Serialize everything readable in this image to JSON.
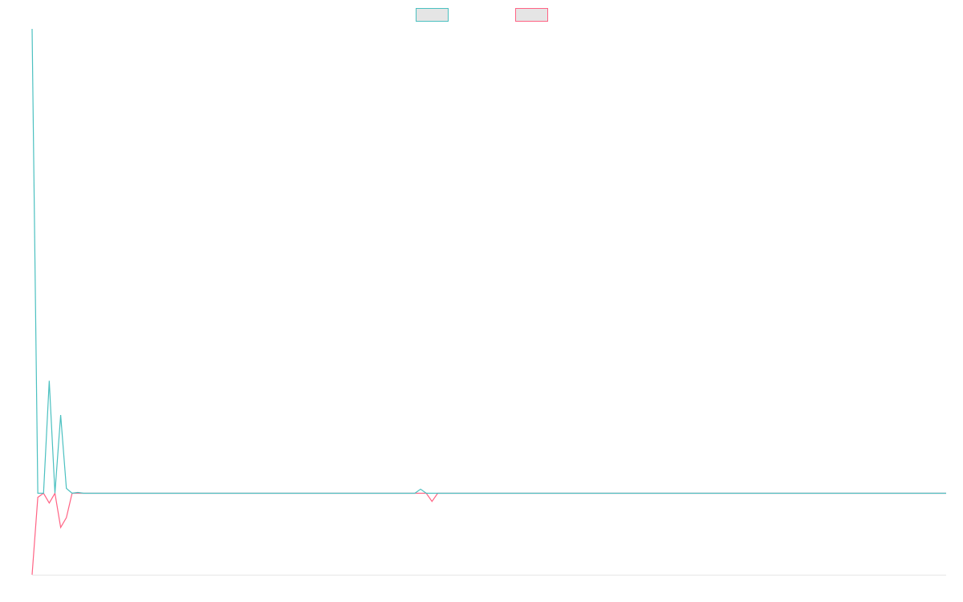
{
  "chart_data": {
    "type": "line",
    "title": "",
    "xlabel": "",
    "ylabel": "",
    "grid": false,
    "legend_position": "top-center",
    "x": [
      0,
      1,
      2,
      3,
      4,
      5,
      6,
      7,
      8,
      9,
      10,
      11,
      12,
      13,
      14,
      15,
      16,
      17,
      18,
      19,
      20,
      21,
      22,
      23,
      24,
      25,
      26,
      27,
      28,
      29,
      30,
      31,
      32,
      33,
      34,
      35,
      36,
      37,
      38,
      39,
      40,
      41,
      42,
      43,
      44,
      45,
      46,
      47,
      48,
      49,
      50,
      51,
      52,
      53,
      54,
      55,
      56,
      57,
      58,
      59,
      60,
      61,
      62,
      63,
      64,
      65,
      66,
      67,
      68,
      69,
      70,
      71,
      72,
      73,
      74,
      75,
      76,
      77,
      78,
      79,
      80,
      81,
      82,
      83,
      84,
      85,
      86,
      87,
      88,
      89,
      90,
      91,
      92,
      93,
      94,
      95,
      96,
      97,
      98,
      99,
      100,
      101,
      102,
      103,
      104,
      105,
      106,
      107,
      108,
      109,
      110,
      111,
      112,
      113,
      114,
      115,
      116,
      117,
      118,
      119,
      120,
      121,
      122,
      123,
      124,
      125,
      126,
      127,
      128,
      129,
      130,
      131,
      132,
      133,
      134,
      135,
      136,
      137,
      138,
      139,
      140,
      141,
      142,
      143,
      144,
      145,
      146,
      147,
      148,
      149,
      150,
      151,
      152,
      153,
      154,
      155,
      156,
      157,
      158,
      159,
      160
    ],
    "xlim": [
      0,
      160
    ],
    "ylim": [
      -100,
      570
    ],
    "series": [
      {
        "color": "#4bc0c0",
        "fill": "#e5e5e5",
        "values": [
          570,
          0,
          0,
          138,
          0,
          96,
          6,
          0,
          1,
          0,
          0,
          0,
          0,
          0,
          0,
          0,
          0,
          0,
          0,
          0,
          0,
          0,
          0,
          0,
          0,
          0,
          0,
          0,
          0,
          0,
          0,
          0,
          0,
          0,
          0,
          0,
          0,
          0,
          0,
          0,
          0,
          0,
          0,
          0,
          0,
          0,
          0,
          0,
          0,
          0,
          0,
          0,
          0,
          0,
          0,
          0,
          0,
          0,
          0,
          0,
          0,
          0,
          0,
          0,
          0,
          0,
          0,
          0,
          5,
          0,
          0,
          0,
          0,
          0,
          0,
          0,
          0,
          0,
          0,
          0,
          0,
          0,
          0,
          0,
          0,
          0,
          0,
          0,
          0,
          0,
          0,
          0,
          0,
          0,
          0,
          0,
          0,
          0,
          0,
          0,
          0,
          0,
          0,
          0,
          0,
          0,
          0,
          0,
          0,
          0,
          0,
          0,
          0,
          0,
          0,
          0,
          0,
          0,
          0,
          0,
          0,
          0,
          0,
          0,
          0,
          0,
          0,
          0,
          0,
          0,
          0,
          0,
          0,
          0,
          0,
          0,
          0,
          0,
          0,
          0,
          0,
          0,
          0,
          0,
          0,
          0,
          0,
          0,
          0,
          0,
          0,
          0,
          0,
          0,
          0,
          0,
          0,
          0,
          0,
          0,
          0
        ]
      },
      {
        "color": "#ff6384",
        "fill": "#e5e5e5",
        "values": [
          -100,
          -5,
          0,
          -12,
          0,
          -42,
          -30,
          0,
          0,
          0,
          0,
          0,
          0,
          0,
          0,
          0,
          0,
          0,
          0,
          0,
          0,
          0,
          0,
          0,
          0,
          0,
          0,
          0,
          0,
          0,
          0,
          0,
          0,
          0,
          0,
          0,
          0,
          0,
          0,
          0,
          0,
          0,
          0,
          0,
          0,
          0,
          0,
          0,
          0,
          0,
          0,
          0,
          0,
          0,
          0,
          0,
          0,
          0,
          0,
          0,
          0,
          0,
          0,
          0,
          0,
          0,
          0,
          0,
          0,
          0,
          -10,
          0,
          0,
          0,
          0,
          0,
          0,
          0,
          0,
          0,
          0,
          0,
          0,
          0,
          0,
          0,
          0,
          0,
          0,
          0,
          0,
          0,
          0,
          0,
          0,
          0,
          0,
          0,
          0,
          0,
          0,
          0,
          0,
          0,
          0,
          0,
          0,
          0,
          0,
          0,
          0,
          0,
          0,
          0,
          0,
          0,
          0,
          0,
          0,
          0,
          0,
          0,
          0,
          0,
          0,
          0,
          0,
          0,
          0,
          0,
          0,
          0,
          0,
          0,
          0,
          0,
          0,
          0,
          0,
          0,
          0,
          0,
          0,
          0,
          0,
          0,
          0,
          0,
          0,
          0,
          0,
          0,
          0,
          0,
          0,
          0,
          0,
          0,
          0,
          0,
          0
        ]
      }
    ]
  }
}
